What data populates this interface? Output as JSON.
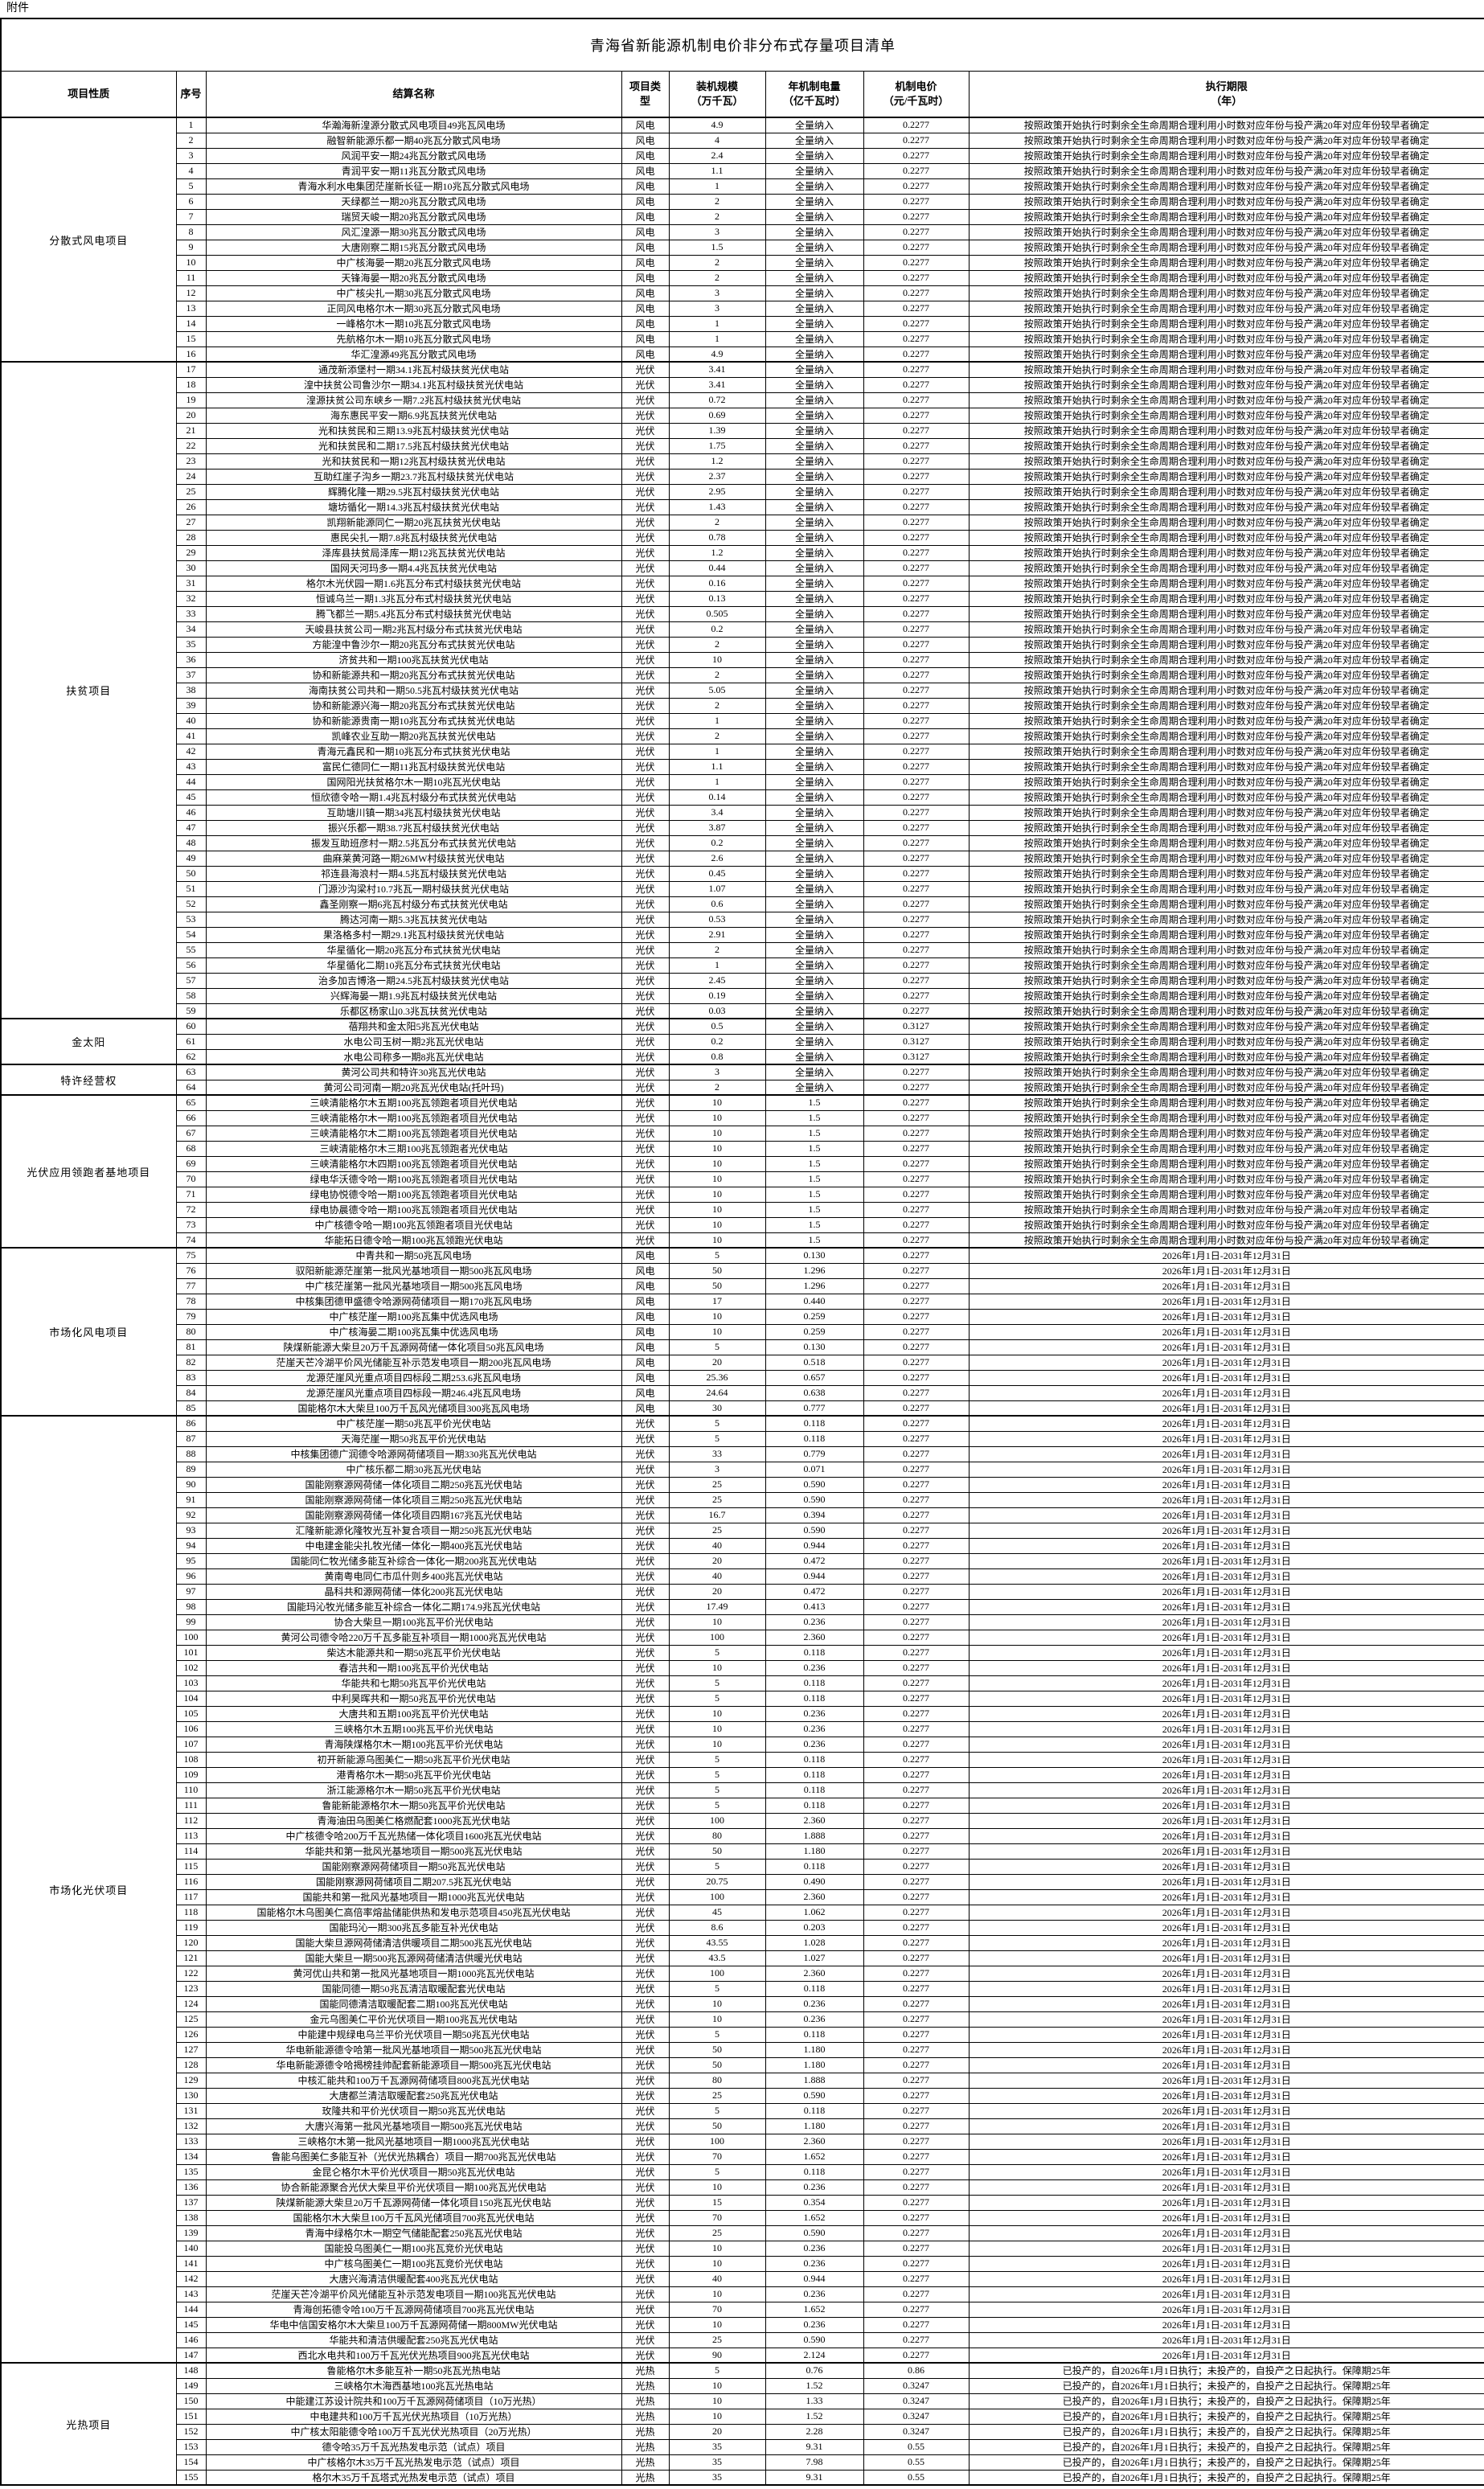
{
  "attachment_label": "附件",
  "title": "青海省新能源机制电价非分布式存量项目清单",
  "table": {
    "headers": [
      "项目性质",
      "序号",
      "结算名称",
      "项目类\n型",
      "装机规模\n（万千瓦）",
      "年机制电量\n（亿千瓦时）",
      "机制电价\n（元/千瓦时）",
      "执行期限\n（年）"
    ]
  },
  "periods": {
    "A": "按照政策开始执行时剩余全生命周期合理利用小时数对应年份与投产满20年对应年份较早者确定",
    "B": "2026年1月1日-2031年12月31日",
    "C": "已投产的，自2026年1月1日执行；未投产的，自投产之日起执行。保障期25年"
  },
  "categories": [
    {
      "label": "分散式风电项目",
      "start": 1,
      "end": 16
    },
    {
      "label": "扶贫项目",
      "start": 17,
      "end": 59
    },
    {
      "label": "金太阳",
      "start": 60,
      "end": 62
    },
    {
      "label": "特许经营权",
      "start": 63,
      "end": 64
    },
    {
      "label": "光伏应用领跑者基地项目",
      "start": 65,
      "end": 74
    },
    {
      "label": "市场化风电项目",
      "start": 75,
      "end": 85
    },
    {
      "label": "市场化光伏项目",
      "start": 86,
      "end": 147
    },
    {
      "label": "光热项目",
      "start": 148,
      "end": 155
    }
  ],
  "rows": [
    [
      "1",
      "华瀚海新湟源分散式风电项目49兆瓦风电场",
      "风电",
      "4.9",
      "全量纳入",
      "0.2277",
      "A"
    ],
    [
      "2",
      "融智新能源乐都一期40兆瓦分散式风电场",
      "风电",
      "4",
      "全量纳入",
      "0.2277",
      "A"
    ],
    [
      "3",
      "风润平安一期24兆瓦分散式风电场",
      "风电",
      "2.4",
      "全量纳入",
      "0.2277",
      "A"
    ],
    [
      "4",
      "青润平安一期11兆瓦分散式风电场",
      "风电",
      "1.1",
      "全量纳入",
      "0.2277",
      "A"
    ],
    [
      "5",
      "青海水利水电集团茫崖新长征一期10兆瓦分散式风电场",
      "风电",
      "1",
      "全量纳入",
      "0.2277",
      "A"
    ],
    [
      "6",
      "天绿都兰一期20兆瓦分散式风电场",
      "风电",
      "2",
      "全量纳入",
      "0.2277",
      "A"
    ],
    [
      "7",
      "瑞贸天峻一期20兆瓦分散式风电场",
      "风电",
      "2",
      "全量纳入",
      "0.2277",
      "A"
    ],
    [
      "8",
      "风汇湟源一期30兆瓦分散式风电场",
      "风电",
      "3",
      "全量纳入",
      "0.2277",
      "A"
    ],
    [
      "9",
      "大唐刚察二期15兆瓦分散式风电场",
      "风电",
      "1.5",
      "全量纳入",
      "0.2277",
      "A"
    ],
    [
      "10",
      "中广核海晏一期20兆瓦分散式风电场",
      "风电",
      "2",
      "全量纳入",
      "0.2277",
      "A"
    ],
    [
      "11",
      "天锋海晏一期20兆瓦分散式风电场",
      "风电",
      "2",
      "全量纳入",
      "0.2277",
      "A"
    ],
    [
      "12",
      "中广核尖扎一期30兆瓦分散式风电场",
      "风电",
      "3",
      "全量纳入",
      "0.2277",
      "A"
    ],
    [
      "13",
      "正同风电格尔木一期30兆瓦分散式风电场",
      "风电",
      "3",
      "全量纳入",
      "0.2277",
      "A"
    ],
    [
      "14",
      "一峰格尔木一期10兆瓦分散式风电场",
      "风电",
      "1",
      "全量纳入",
      "0.2277",
      "A"
    ],
    [
      "15",
      "先航格尔木一期10兆瓦分散式风电场",
      "风电",
      "1",
      "全量纳入",
      "0.2277",
      "A"
    ],
    [
      "16",
      "华汇湟源49兆瓦分散式风电场",
      "风电",
      "4.9",
      "全量纳入",
      "0.2277",
      "A"
    ],
    [
      "17",
      "通茂新添堡村一期34.1兆瓦村级扶贫光伏电站",
      "光伏",
      "3.41",
      "全量纳入",
      "0.2277",
      "A"
    ],
    [
      "18",
      "湟中扶贫公司鲁沙尔一期34.1兆瓦村级扶贫光伏电站",
      "光伏",
      "3.41",
      "全量纳入",
      "0.2277",
      "A"
    ],
    [
      "19",
      "湟源扶贫公司东峡乡一期7.2兆瓦村级扶贫光伏电站",
      "光伏",
      "0.72",
      "全量纳入",
      "0.2277",
      "A"
    ],
    [
      "20",
      "海东惠民平安一期6.9兆瓦扶贫光伏电站",
      "光伏",
      "0.69",
      "全量纳入",
      "0.2277",
      "A"
    ],
    [
      "21",
      "光和扶贫民和三期13.9兆瓦村级扶贫光伏电站",
      "光伏",
      "1.39",
      "全量纳入",
      "0.2277",
      "A"
    ],
    [
      "22",
      "光和扶贫民和二期17.5兆瓦村级扶贫光伏电站",
      "光伏",
      "1.75",
      "全量纳入",
      "0.2277",
      "A"
    ],
    [
      "23",
      "光和扶贫民和一期12兆瓦村级扶贫光伏电站",
      "光伏",
      "1.2",
      "全量纳入",
      "0.2277",
      "A"
    ],
    [
      "24",
      "互助红崖子沟乡一期23.7兆瓦村级扶贫光伏电站",
      "光伏",
      "2.37",
      "全量纳入",
      "0.2277",
      "A"
    ],
    [
      "25",
      "辉腾化隆一期29.5兆瓦村级扶贫光伏电站",
      "光伏",
      "2.95",
      "全量纳入",
      "0.2277",
      "A"
    ],
    [
      "26",
      "塘坊循化一期14.3兆瓦村级扶贫光伏电站",
      "光伏",
      "1.43",
      "全量纳入",
      "0.2277",
      "A"
    ],
    [
      "27",
      "凯翔新能源同仁一期20兆瓦扶贫光伏电站",
      "光伏",
      "2",
      "全量纳入",
      "0.2277",
      "A"
    ],
    [
      "28",
      "惠民尖扎一期7.8兆瓦村级扶贫光伏电站",
      "光伏",
      "0.78",
      "全量纳入",
      "0.2277",
      "A"
    ],
    [
      "29",
      "泽库县扶贫局泽库一期12兆瓦扶贫光伏电站",
      "光伏",
      "1.2",
      "全量纳入",
      "0.2277",
      "A"
    ],
    [
      "30",
      "国网天河玛多一期4.4兆瓦扶贫光伏电站",
      "光伏",
      "0.44",
      "全量纳入",
      "0.2277",
      "A"
    ],
    [
      "31",
      "格尔木光伏园一期1.6兆瓦分布式村级扶贫光伏电站",
      "光伏",
      "0.16",
      "全量纳入",
      "0.2277",
      "A"
    ],
    [
      "32",
      "恒诚乌兰一期1.3兆瓦分布式村级扶贫光伏电站",
      "光伏",
      "0.13",
      "全量纳入",
      "0.2277",
      "A"
    ],
    [
      "33",
      "腾飞都兰一期5.4兆瓦分布式村级扶贫光伏电站",
      "光伏",
      "0.505",
      "全量纳入",
      "0.2277",
      "A"
    ],
    [
      "34",
      "天峻县扶贫公司一期2兆瓦村级分布式扶贫光伏电站",
      "光伏",
      "0.2",
      "全量纳入",
      "0.2277",
      "A"
    ],
    [
      "35",
      "方能湟中鲁沙尔一期20兆瓦分布式扶贫光伏电站",
      "光伏",
      "2",
      "全量纳入",
      "0.2277",
      "A"
    ],
    [
      "36",
      "济贫共和一期100兆瓦扶贫光伏电站",
      "光伏",
      "10",
      "全量纳入",
      "0.2277",
      "A"
    ],
    [
      "37",
      "协和新能源共和一期20兆瓦分布式扶贫光伏电站",
      "光伏",
      "2",
      "全量纳入",
      "0.2277",
      "A"
    ],
    [
      "38",
      "海南扶贫公司共和一期50.5兆瓦村级扶贫光伏电站",
      "光伏",
      "5.05",
      "全量纳入",
      "0.2277",
      "A"
    ],
    [
      "39",
      "协和新能源兴海一期20兆瓦分布式扶贫光伏电站",
      "光伏",
      "2",
      "全量纳入",
      "0.2277",
      "A"
    ],
    [
      "40",
      "协和新能源贵南一期10兆瓦分布式扶贫光伏电站",
      "光伏",
      "1",
      "全量纳入",
      "0.2277",
      "A"
    ],
    [
      "41",
      "凯峰农业互助一期20兆瓦扶贫光伏电站",
      "光伏",
      "2",
      "全量纳入",
      "0.2277",
      "A"
    ],
    [
      "42",
      "青海元鑫民和一期10兆瓦分布式扶贫光伏电站",
      "光伏",
      "1",
      "全量纳入",
      "0.2277",
      "A"
    ],
    [
      "43",
      "富民仁德同仁一期11兆瓦村级扶贫光伏电站",
      "光伏",
      "1.1",
      "全量纳入",
      "0.2277",
      "A"
    ],
    [
      "44",
      "国网阳光扶贫格尔木一期10兆瓦光伏电站",
      "光伏",
      "1",
      "全量纳入",
      "0.2277",
      "A"
    ],
    [
      "45",
      "恒欣德令哈一期1.4兆瓦村级分布式扶贫光伏电站",
      "光伏",
      "0.14",
      "全量纳入",
      "0.2277",
      "A"
    ],
    [
      "46",
      "互助塘川镇一期34兆瓦村级扶贫光伏电站",
      "光伏",
      "3.4",
      "全量纳入",
      "0.2277",
      "A"
    ],
    [
      "47",
      "振兴乐都一期38.7兆瓦村级扶贫光伏电站",
      "光伏",
      "3.87",
      "全量纳入",
      "0.2277",
      "A"
    ],
    [
      "48",
      "振发互助班彦村一期2.5兆瓦分布式扶贫光伏电站",
      "光伏",
      "0.2",
      "全量纳入",
      "0.2277",
      "A"
    ],
    [
      "49",
      "曲麻莱黄河路一期26MW村级扶贫光伏电站",
      "光伏",
      "2.6",
      "全量纳入",
      "0.2277",
      "A"
    ],
    [
      "50",
      "祁连县海浪村一期4.5兆瓦村级扶贫光伏电站",
      "光伏",
      "0.45",
      "全量纳入",
      "0.2277",
      "A"
    ],
    [
      "51",
      "门源沙沟梁村10.7兆瓦一期村级扶贫光伏电站",
      "光伏",
      "1.07",
      "全量纳入",
      "0.2277",
      "A"
    ],
    [
      "52",
      "鑫圣刚察一期6兆瓦村级分布式扶贫光伏电站",
      "光伏",
      "0.6",
      "全量纳入",
      "0.2277",
      "A"
    ],
    [
      "53",
      "腾达河南一期5.3兆瓦扶贫光伏电站",
      "光伏",
      "0.53",
      "全量纳入",
      "0.2277",
      "A"
    ],
    [
      "54",
      "果洛格多村一期29.1兆瓦村级扶贫光伏电站",
      "光伏",
      "2.91",
      "全量纳入",
      "0.2277",
      "A"
    ],
    [
      "55",
      "华星循化一期20兆瓦分布式扶贫光伏电站",
      "光伏",
      "2",
      "全量纳入",
      "0.2277",
      "A"
    ],
    [
      "56",
      "华星循化二期10兆瓦分布式扶贫光伏电站",
      "光伏",
      "1",
      "全量纳入",
      "0.2277",
      "A"
    ],
    [
      "57",
      "治多加吉博洛一期24.5兆瓦村级扶贫光伏电站",
      "光伏",
      "2.45",
      "全量纳入",
      "0.2277",
      "A"
    ],
    [
      "58",
      "兴辉海晏一期1.9兆瓦村级扶贫光伏电站",
      "光伏",
      "0.19",
      "全量纳入",
      "0.2277",
      "A"
    ],
    [
      "59",
      "乐都区杨家山0.3兆瓦扶贫光伏电站",
      "光伏",
      "0.03",
      "全量纳入",
      "0.2277",
      "A"
    ],
    [
      "60",
      "蓓翔共和金太阳5兆瓦光伏电站",
      "光伏",
      "0.5",
      "全量纳入",
      "0.3127",
      "A"
    ],
    [
      "61",
      "水电公司玉树一期2兆瓦光伏电站",
      "光伏",
      "0.2",
      "全量纳入",
      "0.3127",
      "A"
    ],
    [
      "62",
      "水电公司称多一期8兆瓦光伏电站",
      "光伏",
      "0.8",
      "全量纳入",
      "0.3127",
      "A"
    ],
    [
      "63",
      "黄河公司共和特许30兆瓦光伏电站",
      "光伏",
      "3",
      "全量纳入",
      "0.2277",
      "A"
    ],
    [
      "64",
      "黄河公司河南一期20兆瓦光伏电站(托叶玛)",
      "光伏",
      "2",
      "全量纳入",
      "0.2277",
      "A"
    ],
    [
      "65",
      "三峡清能格尔木五期100兆瓦领跑者项目光伏电站",
      "光伏",
      "10",
      "1.5",
      "0.2277",
      "A"
    ],
    [
      "66",
      "三峡清能格尔木一期100兆瓦领跑者项目光伏电站",
      "光伏",
      "10",
      "1.5",
      "0.2277",
      "A"
    ],
    [
      "67",
      "三峡清能格尔木二期100兆瓦领跑者项目光伏电站",
      "光伏",
      "10",
      "1.5",
      "0.2277",
      "A"
    ],
    [
      "68",
      "三峡清能格尔木三期100兆瓦领跑者光伏电站",
      "光伏",
      "10",
      "1.5",
      "0.2277",
      "A"
    ],
    [
      "69",
      "三峡清能格尔木四期100兆瓦领跑者项目光伏电站",
      "光伏",
      "10",
      "1.5",
      "0.2277",
      "A"
    ],
    [
      "70",
      "绿电华沃德令哈一期100兆瓦领跑者项目光伏电站",
      "光伏",
      "10",
      "1.5",
      "0.2277",
      "A"
    ],
    [
      "71",
      "绿电协悦德令哈一期100兆瓦领跑者项目光伏电站",
      "光伏",
      "10",
      "1.5",
      "0.2277",
      "A"
    ],
    [
      "72",
      "绿电协晨德令哈一期100兆瓦领跑者项目光伏电站",
      "光伏",
      "10",
      "1.5",
      "0.2277",
      "A"
    ],
    [
      "73",
      "中广核德令哈一期100兆瓦领跑者项目光伏电站",
      "光伏",
      "10",
      "1.5",
      "0.2277",
      "A"
    ],
    [
      "74",
      "华能拓日德令哈一期100兆瓦领跑光伏电站",
      "光伏",
      "10",
      "1.5",
      "0.2277",
      "A"
    ],
    [
      "75",
      "中青共和一期50兆瓦风电场",
      "风电",
      "5",
      "0.130",
      "0.2277",
      "B"
    ],
    [
      "76",
      "驭阳新能源茫崖第一批风光基地项目一期500兆瓦风电场",
      "风电",
      "50",
      "1.296",
      "0.2277",
      "B"
    ],
    [
      "77",
      "中广核茫崖第一批风光基地项目一期500兆瓦风电场",
      "风电",
      "50",
      "1.296",
      "0.2277",
      "B"
    ],
    [
      "78",
      "中核集团德甲盛德令哈源网荷储项目一期170兆瓦风电场",
      "风电",
      "17",
      "0.440",
      "0.2277",
      "B"
    ],
    [
      "79",
      "中广核茫崖一期100兆瓦集中优选风电场",
      "风电",
      "10",
      "0.259",
      "0.2277",
      "B"
    ],
    [
      "80",
      "中广核海晏二期100兆瓦集中优选风电场",
      "风电",
      "10",
      "0.259",
      "0.2277",
      "B"
    ],
    [
      "81",
      "陕煤新能源大柴旦20万千瓦源网荷储一体化项目50兆瓦风电场",
      "风电",
      "5",
      "0.130",
      "0.2277",
      "B"
    ],
    [
      "82",
      "茫崖天芒冷湖平价风光储能互补示范发电项目一期200兆瓦风电场",
      "风电",
      "20",
      "0.518",
      "0.2277",
      "B"
    ],
    [
      "83",
      "龙源茫崖风光重点项目四标段二期253.6兆瓦风电场",
      "风电",
      "25.36",
      "0.657",
      "0.2277",
      "B"
    ],
    [
      "84",
      "龙源茫崖风光重点项目四标段一期246.4兆瓦风电场",
      "风电",
      "24.64",
      "0.638",
      "0.2277",
      "B"
    ],
    [
      "85",
      "国能格尔木大柴旦100万千瓦风光储项目300兆瓦风电场",
      "风电",
      "30",
      "0.777",
      "0.2277",
      "B"
    ],
    [
      "86",
      "中广核茫崖一期50兆瓦平价光伏电站",
      "光伏",
      "5",
      "0.118",
      "0.2277",
      "B"
    ],
    [
      "87",
      "天海茫崖一期50兆瓦平价光伏电站",
      "光伏",
      "5",
      "0.118",
      "0.2277",
      "B"
    ],
    [
      "88",
      "中核集团德广润德令哈源网荷储项目一期330兆瓦光伏电站",
      "光伏",
      "33",
      "0.779",
      "0.2277",
      "B"
    ],
    [
      "89",
      "中广核乐都二期30兆瓦光伏电站",
      "光伏",
      "3",
      "0.071",
      "0.2277",
      "B"
    ],
    [
      "90",
      "国能刚察源网荷储一体化项目二期250兆瓦光伏电站",
      "光伏",
      "25",
      "0.590",
      "0.2277",
      "B"
    ],
    [
      "91",
      "国能刚察源网荷储一体化项目三期250兆瓦光伏电站",
      "光伏",
      "25",
      "0.590",
      "0.2277",
      "B"
    ],
    [
      "92",
      "国能刚察源网荷储一体化项目四期167兆瓦光伏电站",
      "光伏",
      "16.7",
      "0.394",
      "0.2277",
      "B"
    ],
    [
      "93",
      "汇隆新能源化隆牧光互补复合项目一期250兆瓦光伏电站",
      "光伏",
      "25",
      "0.590",
      "0.2277",
      "B"
    ],
    [
      "94",
      "中电建金能尖扎牧光储一体化一期400兆瓦光伏电站",
      "光伏",
      "40",
      "0.944",
      "0.2277",
      "B"
    ],
    [
      "95",
      "国能同仁牧光储多能互补综合一体化一期200兆瓦光伏电站",
      "光伏",
      "20",
      "0.472",
      "0.2277",
      "B"
    ],
    [
      "96",
      "黄南粤电同仁市瓜什则乡400兆瓦光伏电站",
      "光伏",
      "40",
      "0.944",
      "0.2277",
      "B"
    ],
    [
      "97",
      "晶科共和源网荷储一体化200兆瓦光伏电站",
      "光伏",
      "20",
      "0.472",
      "0.2277",
      "B"
    ],
    [
      "98",
      "国能玛沁牧光储多能互补综合一体化二期174.9兆瓦光伏电站",
      "光伏",
      "17.49",
      "0.413",
      "0.2277",
      "B"
    ],
    [
      "99",
      "协合大柴旦一期100兆瓦平价光伏电站",
      "光伏",
      "10",
      "0.236",
      "0.2277",
      "B"
    ],
    [
      "100",
      "黄河公司德令哈220万千瓦多能互补项目一期1000兆瓦光伏电站",
      "光伏",
      "100",
      "2.360",
      "0.2277",
      "B"
    ],
    [
      "101",
      "柴达木能源共和一期50兆瓦平价光伏电站",
      "光伏",
      "5",
      "0.118",
      "0.2277",
      "B"
    ],
    [
      "102",
      "春洁共和一期100兆瓦平价光伏电站",
      "光伏",
      "10",
      "0.236",
      "0.2277",
      "B"
    ],
    [
      "103",
      "华能共和七期50兆瓦平价光伏电站",
      "光伏",
      "5",
      "0.118",
      "0.2277",
      "B"
    ],
    [
      "104",
      "中利昊晖共和一期50兆瓦平价光伏电站",
      "光伏",
      "5",
      "0.118",
      "0.2277",
      "B"
    ],
    [
      "105",
      "大唐共和五期100兆瓦平价光伏电站",
      "光伏",
      "10",
      "0.236",
      "0.2277",
      "B"
    ],
    [
      "106",
      "三峡格尔木五期100兆瓦平价光伏电站",
      "光伏",
      "10",
      "0.236",
      "0.2277",
      "B"
    ],
    [
      "107",
      "青海陕煤格尔木一期100兆瓦平价光伏电站",
      "光伏",
      "10",
      "0.236",
      "0.2277",
      "B"
    ],
    [
      "108",
      "初开新能源乌图美仁一期50兆瓦平价光伏电站",
      "光伏",
      "5",
      "0.118",
      "0.2277",
      "B"
    ],
    [
      "109",
      "港青格尔木一期50兆瓦平价光伏电站",
      "光伏",
      "5",
      "0.118",
      "0.2277",
      "B"
    ],
    [
      "110",
      "浙江能源格尔木一期50兆瓦平价光伏电站",
      "光伏",
      "5",
      "0.118",
      "0.2277",
      "B"
    ],
    [
      "111",
      "鲁能新能源格尔木一期50兆瓦平价光伏电站",
      "光伏",
      "5",
      "0.118",
      "0.2277",
      "B"
    ],
    [
      "112",
      "青海油田乌图美仁格燃配套1000兆瓦光伏电站",
      "光伏",
      "100",
      "2.360",
      "0.2277",
      "B"
    ],
    [
      "113",
      "中广核德令哈200万千瓦光热储一体化项目1600兆瓦光伏电站",
      "光伏",
      "80",
      "1.888",
      "0.2277",
      "B"
    ],
    [
      "114",
      "华能共和第一批风光基地项目一期500兆瓦光伏电站",
      "光伏",
      "50",
      "1.180",
      "0.2277",
      "B"
    ],
    [
      "115",
      "国能刚察源网荷储项目一期50兆瓦光伏电站",
      "光伏",
      "5",
      "0.118",
      "0.2277",
      "B"
    ],
    [
      "116",
      "国能刚察源网荷储项目二期207.5兆瓦光伏电站",
      "光伏",
      "20.75",
      "0.490",
      "0.2277",
      "B"
    ],
    [
      "117",
      "国能共和第一批风光基地项目一期1000兆瓦光伏电站",
      "光伏",
      "100",
      "2.360",
      "0.2277",
      "B"
    ],
    [
      "118",
      "国能格尔木乌图美仁高倍率熔盐储能供热和发电示范项目450兆瓦光伏电站",
      "光伏",
      "45",
      "1.062",
      "0.2277",
      "B"
    ],
    [
      "119",
      "国能玛沁一期300兆瓦多能互补光伏电站",
      "光伏",
      "8.6",
      "0.203",
      "0.2277",
      "B"
    ],
    [
      "120",
      "国能大柴旦源网荷储清洁供暖项目二期500兆瓦光伏电站",
      "光伏",
      "43.55",
      "1.028",
      "0.2277",
      "B"
    ],
    [
      "121",
      "国能大柴旦一期500兆瓦源网荷储清洁供暖光伏电站",
      "光伏",
      "43.5",
      "1.027",
      "0.2277",
      "B"
    ],
    [
      "122",
      "黄河优山共和第一批风光基地项目一期1000兆瓦光伏电站",
      "光伏",
      "100",
      "2.360",
      "0.2277",
      "B"
    ],
    [
      "123",
      "国能同德一期50兆瓦清洁取暖配套光伏电站",
      "光伏",
      "5",
      "0.118",
      "0.2277",
      "B"
    ],
    [
      "124",
      "国能同德清洁取暖配套二期100兆瓦光伏电站",
      "光伏",
      "10",
      "0.236",
      "0.2277",
      "B"
    ],
    [
      "125",
      "金元乌图美仁平价光伏项目一期100兆瓦光伏电站",
      "光伏",
      "10",
      "0.236",
      "0.2277",
      "B"
    ],
    [
      "126",
      "中能建中规绿电乌兰平价光伏项目一期50兆瓦光伏电站",
      "光伏",
      "5",
      "0.118",
      "0.2277",
      "B"
    ],
    [
      "127",
      "华电新能源德令哈第一批风光基地项目一期500兆瓦光伏电站",
      "光伏",
      "50",
      "1.180",
      "0.2277",
      "B"
    ],
    [
      "128",
      "华电新能源德令哈揭榜挂帅配套新能源项目一期500兆瓦光伏电站",
      "光伏",
      "50",
      "1.180",
      "0.2277",
      "B"
    ],
    [
      "129",
      "中核汇能共和100万千瓦源网荷储项目800兆瓦光伏电站",
      "光伏",
      "80",
      "1.888",
      "0.2277",
      "B"
    ],
    [
      "130",
      "大唐都兰清洁取暖配套250兆瓦光伏电站",
      "光伏",
      "25",
      "0.590",
      "0.2277",
      "B"
    ],
    [
      "131",
      "玫隆共和平价光伏项目一期50兆瓦光伏电站",
      "光伏",
      "5",
      "0.118",
      "0.2277",
      "B"
    ],
    [
      "132",
      "大唐兴海第一批风光基地项目一期500兆瓦光伏电站",
      "光伏",
      "50",
      "1.180",
      "0.2277",
      "B"
    ],
    [
      "133",
      "三峡格尔木第一批风光基地项目一期1000兆瓦光伏电站",
      "光伏",
      "100",
      "2.360",
      "0.2277",
      "B"
    ],
    [
      "134",
      "鲁能乌图美仁多能互补（光伏光热耦合）项目一期700兆瓦光伏电站",
      "光伏",
      "70",
      "1.652",
      "0.2277",
      "B"
    ],
    [
      "135",
      "金昆仑格尔木平价光伏项目一期50兆瓦光伏电站",
      "光伏",
      "5",
      "0.118",
      "0.2277",
      "B"
    ],
    [
      "136",
      "协合新能源聚合光伏大柴旦平价光伏项目一期100兆瓦光伏电站",
      "光伏",
      "10",
      "0.236",
      "0.2277",
      "B"
    ],
    [
      "137",
      "陕煤新能源大柴旦20万千瓦源网荷储一体化项目150兆瓦光伏电站",
      "光伏",
      "15",
      "0.354",
      "0.2277",
      "B"
    ],
    [
      "138",
      "国能格尔木大柴旦100万千瓦风光储项目700兆瓦光伏电站",
      "光伏",
      "70",
      "1.652",
      "0.2277",
      "B"
    ],
    [
      "139",
      "青海中绿格尔木一期空气储能配套250兆瓦光伏电站",
      "光伏",
      "25",
      "0.590",
      "0.2277",
      "B"
    ],
    [
      "140",
      "国能投乌图美仁一期100兆瓦竞价光伏电站",
      "光伏",
      "10",
      "0.236",
      "0.2277",
      "B"
    ],
    [
      "141",
      "中广核乌图美仁一期100兆瓦竞价光伏电站",
      "光伏",
      "10",
      "0.236",
      "0.2277",
      "B"
    ],
    [
      "142",
      "大唐兴海清洁供暖配套400兆瓦光伏电站",
      "光伏",
      "40",
      "0.944",
      "0.2277",
      "B"
    ],
    [
      "143",
      "茫崖天芒冷湖平价风光储能互补示范发电项目一期100兆瓦光伏电站",
      "光伏",
      "10",
      "0.236",
      "0.2277",
      "B"
    ],
    [
      "144",
      "青海创拓德令哈100万千瓦源网荷储项目700兆瓦光伏电站",
      "光伏",
      "70",
      "1.652",
      "0.2277",
      "B"
    ],
    [
      "145",
      "华电中信国安格尔木大柴旦100万千瓦源网荷储一期800MW光伏电站",
      "光伏",
      "10",
      "0.236",
      "0.2277",
      "B"
    ],
    [
      "146",
      "华能共和清洁供暖配套250兆瓦光伏电站",
      "光伏",
      "25",
      "0.590",
      "0.2277",
      "B"
    ],
    [
      "147",
      "西北水电共和100万千瓦光伏光热项目900兆瓦光伏电站",
      "光伏",
      "90",
      "2.124",
      "0.2277",
      "B"
    ],
    [
      "148",
      "鲁能格尔木多能互补一期50兆瓦光热电站",
      "光热",
      "5",
      "0.76",
      "0.86",
      "C"
    ],
    [
      "149",
      "三峡格尔木海西基地100兆瓦光热电站",
      "光热",
      "10",
      "1.52",
      "0.3247",
      "C"
    ],
    [
      "150",
      "中能建江苏设计院共和100万千瓦源网荷储项目（10万光热）",
      "光热",
      "10",
      "1.33",
      "0.3247",
      "C"
    ],
    [
      "151",
      "中电建共和100万千瓦光伏光热项目（10万光热）",
      "光热",
      "10",
      "1.52",
      "0.3247",
      "C"
    ],
    [
      "152",
      "中广核太阳能德令哈100万千瓦光伏光热项目（20万光热）",
      "光热",
      "20",
      "2.28",
      "0.3247",
      "C"
    ],
    [
      "153",
      "德令哈35万千瓦光热发电示范（试点）项目",
      "光热",
      "35",
      "9.31",
      "0.55",
      "C"
    ],
    [
      "154",
      "中广核格尔木35万千瓦光热发电示范（试点）项目",
      "光热",
      "35",
      "7.98",
      "0.55",
      "C"
    ],
    [
      "155",
      "格尔木35万千瓦塔式光热发电示范（试点）项目",
      "光热",
      "35",
      "9.31",
      "0.55",
      "C"
    ]
  ]
}
